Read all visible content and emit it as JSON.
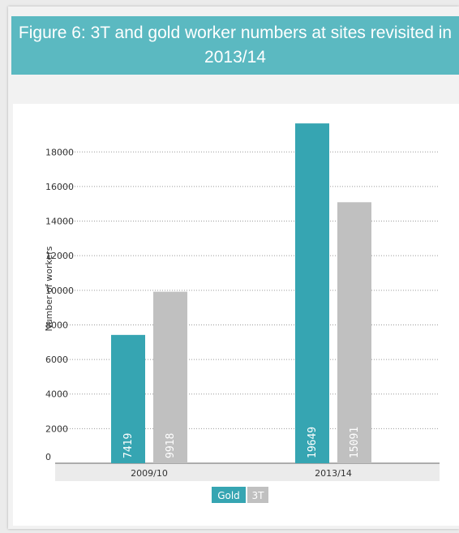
{
  "title": "Figure 6: 3T and gold worker numbers at sites revisited in 2013/14",
  "colors": {
    "gold": "#36a5b2",
    "threeT": "#c0c0c0",
    "title_bar": "#5bb9c1"
  },
  "chart_data": {
    "type": "bar",
    "title": "Figure 6: 3T and gold worker numbers at sites revisited in 2013/14",
    "xlabel": "",
    "ylabel": "Number of workers",
    "categories": [
      "2009/10",
      "2013/14"
    ],
    "series": [
      {
        "name": "Gold",
        "values": [
          7419,
          19649
        ]
      },
      {
        "name": "3T",
        "values": [
          9918,
          15091
        ]
      }
    ],
    "ylim": [
      0,
      20000
    ],
    "yticks": [
      0,
      2000,
      4000,
      6000,
      8000,
      10000,
      12000,
      14000,
      16000,
      18000
    ],
    "grid": true,
    "legend_position": "bottom-center"
  }
}
